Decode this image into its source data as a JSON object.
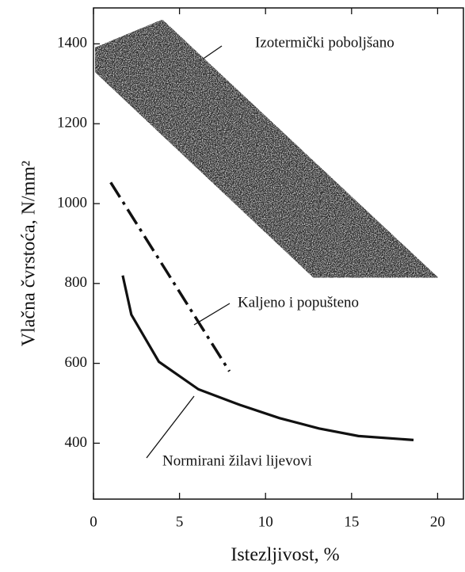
{
  "chart_data": {
    "type": "line",
    "xlabel": "Istezljivost, %",
    "ylabel": "Vlačna čvrstoća, N/mm²",
    "xlim": [
      0,
      21.5
    ],
    "ylim": [
      260,
      1490
    ],
    "xticks": [
      0,
      5,
      10,
      15,
      20
    ],
    "yticks": [
      400,
      600,
      800,
      1000,
      1200,
      1400
    ],
    "series": [
      {
        "name": "Izotermički poboljšano",
        "style": "band",
        "color": "#2a2a2a",
        "x": [
          0.1,
          4,
          20,
          12.8,
          0.1
        ],
        "values": [
          1390,
          1460,
          815,
          815,
          1330
        ]
      },
      {
        "name": "Kaljeno i popušteno",
        "style": "dash-dot",
        "color": "#111111",
        "x": [
          1,
          7.9
        ],
        "values": [
          1053,
          580
        ]
      },
      {
        "name": "Normirani žilavi lijevovi",
        "style": "solid",
        "color": "#111111",
        "x": [
          1.7,
          2.2,
          3.8,
          6.1,
          8.5,
          10.8,
          13.1,
          15.4,
          18.6
        ],
        "values": [
          820,
          722,
          604,
          535,
          496,
          463,
          437,
          418,
          408
        ]
      }
    ]
  }
}
